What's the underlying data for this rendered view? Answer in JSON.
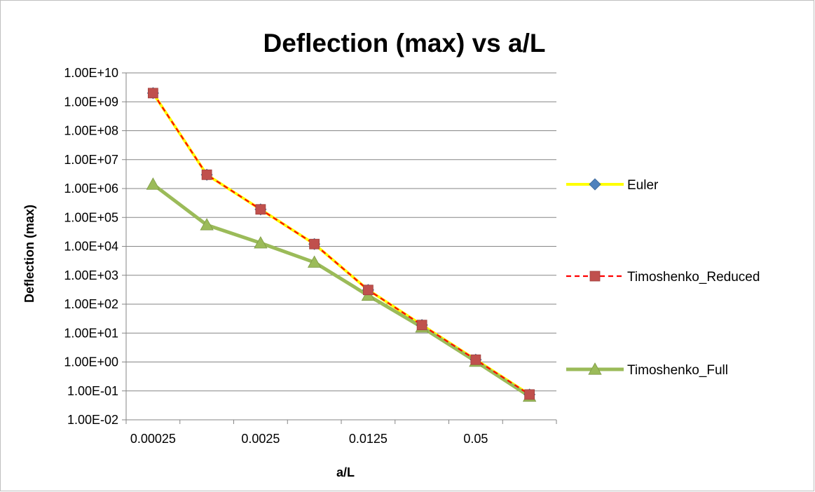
{
  "chart_data": {
    "type": "line",
    "title": "Deflection (max) vs a/L",
    "xlabel": "a/L",
    "ylabel": "Deflection (max)",
    "y_scale": "log",
    "ylim": [
      0.01,
      10000000000.0
    ],
    "y_ticks": [
      "1.00E-02",
      "1.00E-01",
      "1.00E+00",
      "1.00E+01",
      "1.00E+02",
      "1.00E+03",
      "1.00E+04",
      "1.00E+05",
      "1.00E+06",
      "1.00E+07",
      "1.00E+08",
      "1.00E+09",
      "1.00E+10"
    ],
    "x_tick_labels": [
      "0.00025",
      "",
      "0.0025",
      "",
      "0.0125",
      "",
      "0.05",
      ""
    ],
    "grid": "horizontal",
    "legend_position": "right",
    "series": [
      {
        "name": "Euler",
        "color": "#FFFF00",
        "marker": "diamond",
        "marker_color": "#4F81BD",
        "line_style": "solid",
        "values": [
          2000000000.0,
          3000000.0,
          190000.0,
          12000.0,
          310,
          19,
          1.2,
          0.075
        ]
      },
      {
        "name": "Timoshenko_Reduced",
        "color": "#FF0000",
        "marker": "square",
        "marker_color": "#C0504D",
        "line_style": "dashed",
        "values": [
          2000000000.0,
          3000000.0,
          190000.0,
          12000.0,
          310,
          19,
          1.2,
          0.075
        ]
      },
      {
        "name": "Timoshenko_Full",
        "color": "#9BBB59",
        "marker": "triangle",
        "marker_color": "#9BBB59",
        "line_style": "solid",
        "values": [
          1400000.0,
          55000.0,
          13000.0,
          2800.0,
          200,
          16,
          1.05,
          0.065
        ]
      }
    ]
  }
}
